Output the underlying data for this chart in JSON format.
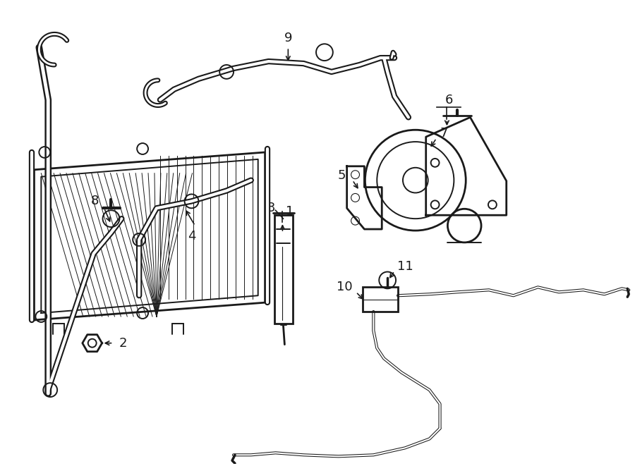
{
  "bg_color": "#ffffff",
  "lc": "#1a1a1a",
  "lw": 1.4,
  "lw2": 2.0,
  "lw_thin": 0.8,
  "fig_w": 9.0,
  "fig_h": 6.61,
  "dpi": 100,
  "label_fs": 13
}
